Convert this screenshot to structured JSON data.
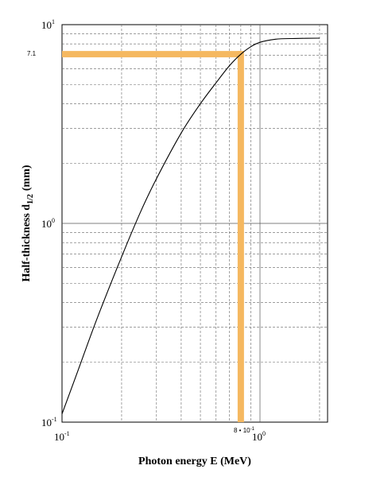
{
  "chart_data": {
    "type": "line",
    "xscale": "log",
    "yscale": "log",
    "xlim": [
      0.1,
      2.3
    ],
    "ylim": [
      0.1,
      10
    ],
    "grid": true,
    "xlabel": "Photon energy  E (MeV)",
    "ylabel": "Half-thickness d",
    "ylabel_sub": "1/2",
    "ylabel_unit": "(mm)",
    "x_ticks": [
      {
        "value": 0.1,
        "base": "10",
        "exp": "-1"
      },
      {
        "value": 1,
        "base": "10",
        "exp": "0"
      }
    ],
    "y_ticks": [
      {
        "value": 0.1,
        "base": "10",
        "exp": "-1"
      },
      {
        "value": 1,
        "base": "10",
        "exp": "0"
      },
      {
        "value": 10,
        "base": "10",
        "exp": "1"
      }
    ],
    "series": [
      {
        "x": [
          0.1,
          0.12,
          0.15,
          0.2,
          0.25,
          0.3,
          0.4,
          0.5,
          0.6,
          0.7,
          0.8,
          0.9,
          1.0,
          1.2,
          1.5,
          2.0
        ],
        "y": [
          0.11,
          0.18,
          0.33,
          0.68,
          1.15,
          1.68,
          2.85,
          4.0,
          5.1,
          6.2,
          7.1,
          7.75,
          8.15,
          8.45,
          8.52,
          8.55
        ]
      }
    ],
    "highlight": {
      "x": 0.8,
      "y": 7.1,
      "x_label": "8 • 10",
      "x_label_exp": "-1",
      "y_label": "7.1",
      "color": "#f5b860"
    }
  }
}
